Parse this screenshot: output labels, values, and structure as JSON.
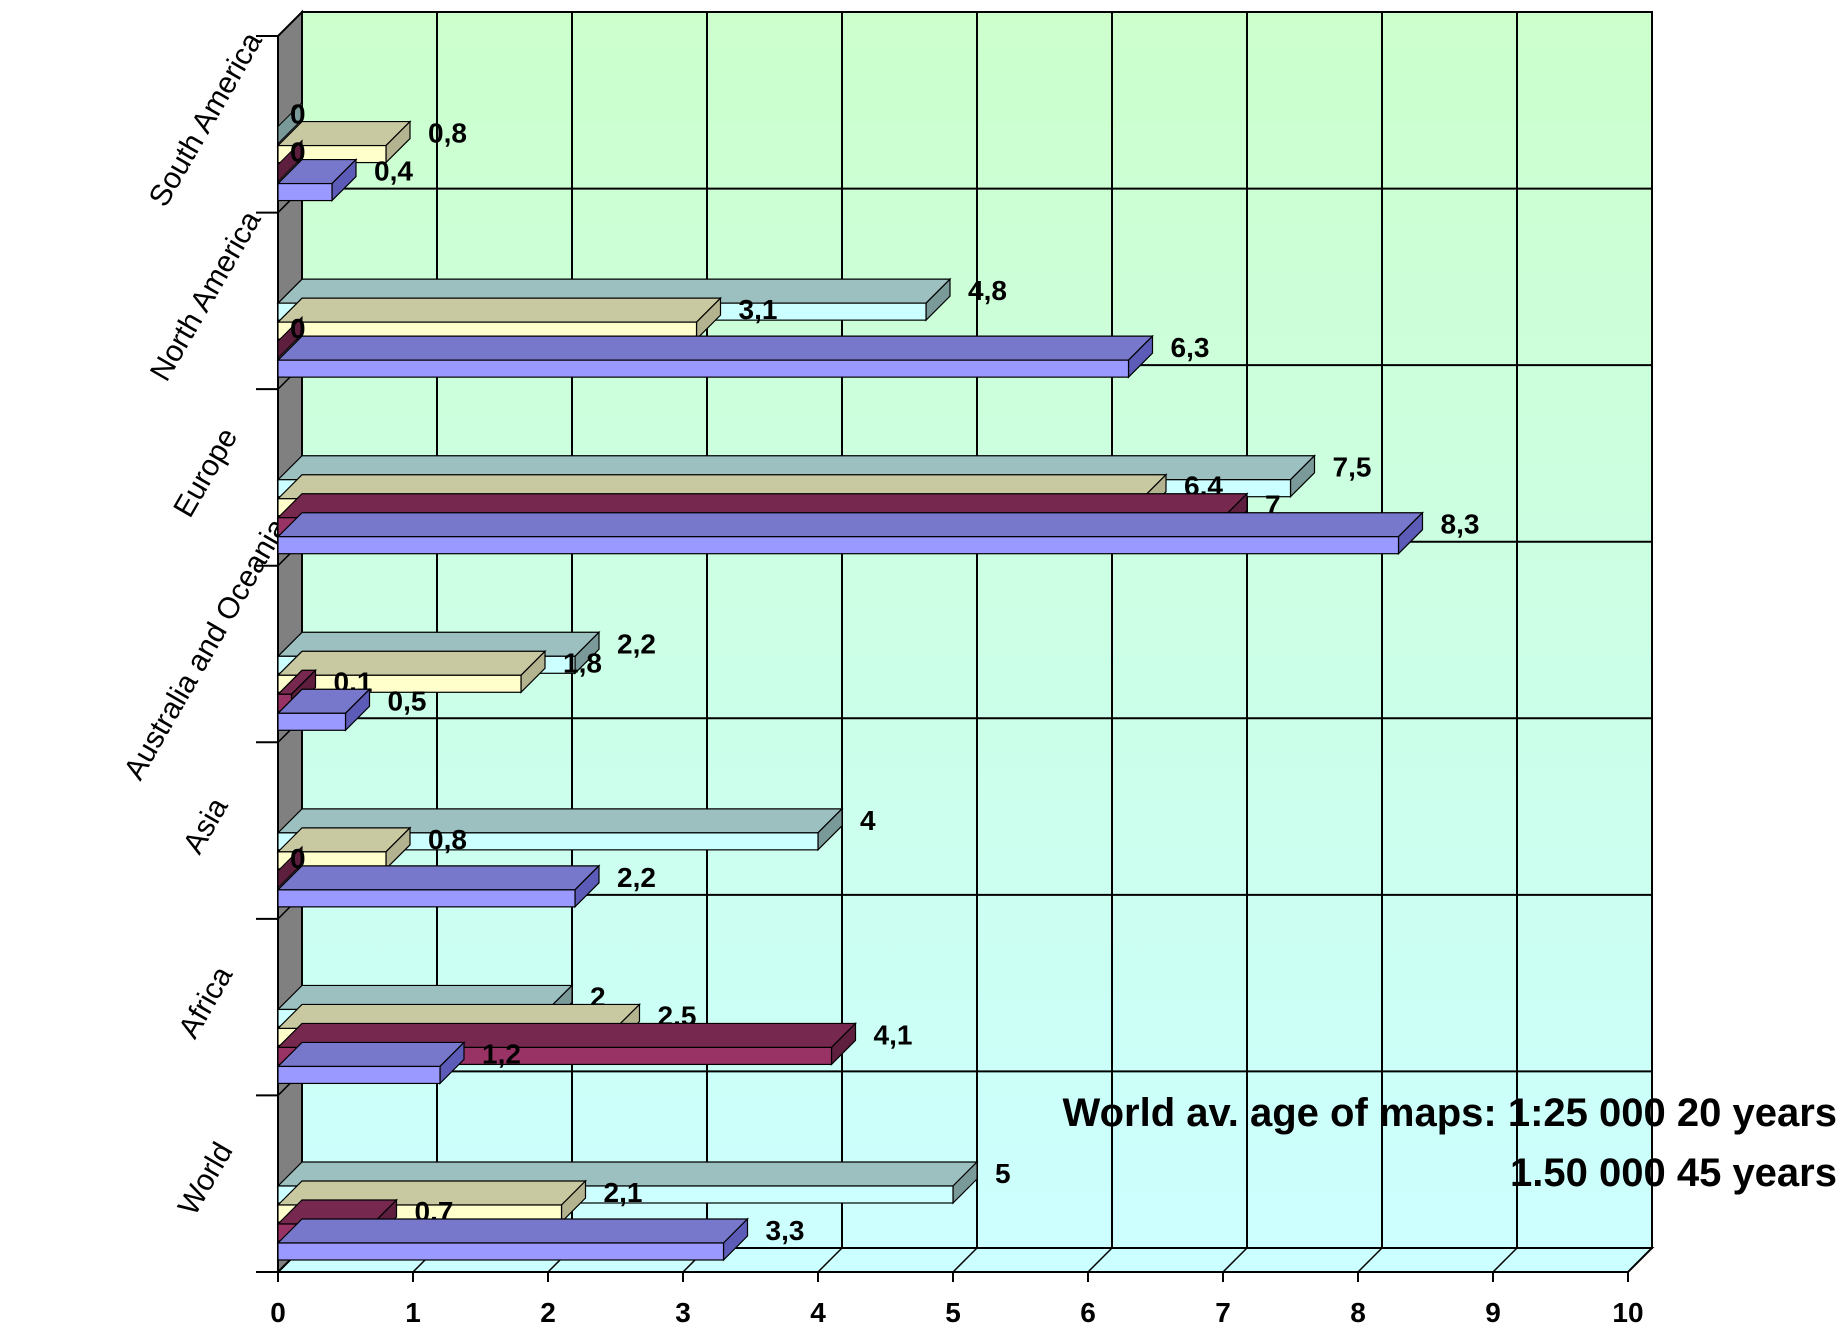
{
  "chart_data": {
    "type": "bar",
    "orientation": "horizontal",
    "three_d": true,
    "categories": [
      "World",
      "Africa",
      "Asia",
      "Australia and Oceania",
      "Europe",
      "North America",
      "South America"
    ],
    "series": [
      {
        "values": [
          3.3,
          1.2,
          2.2,
          0.5,
          8.3,
          6.3,
          0.4
        ],
        "labels": [
          "3,3",
          "1,2",
          "2,2",
          "0,5",
          "8,3",
          "6,3",
          "0,4"
        ],
        "color": "#9999ff",
        "side": "#5c5cb8",
        "top": "#7777cc"
      },
      {
        "values": [
          0.7,
          4.1,
          0,
          0.1,
          7,
          0,
          0
        ],
        "labels": [
          "0,7",
          "4,1",
          "0",
          "0,1",
          "7",
          "0",
          "0"
        ],
        "color": "#993366",
        "side": "#5e1f3f",
        "top": "#77284f"
      },
      {
        "values": [
          2.1,
          2.5,
          0.8,
          1.8,
          6.4,
          3.1,
          0.8
        ],
        "labels": [
          "2,1",
          "2,5",
          "0,8",
          "1,8",
          "6,4",
          "3,1",
          "0,8"
        ],
        "color": "#ffffcc",
        "side": "#b3b38f",
        "top": "#c9c9a1"
      },
      {
        "values": [
          5,
          2,
          4,
          2.2,
          7.5,
          4.8,
          0
        ],
        "labels": [
          "5",
          "2",
          "4",
          "2,2",
          "7,5",
          "4,8",
          "0"
        ],
        "color": "#ccffff",
        "side": "#7a9999",
        "top": "#9cc0c0"
      }
    ],
    "xlim": [
      0,
      10
    ],
    "x_ticks": [
      "0",
      "1",
      "2",
      "3",
      "4",
      "5",
      "6",
      "7",
      "8",
      "9",
      "10"
    ],
    "grid": true,
    "legend": "none",
    "wall_colors": {
      "top": "#ccffcc",
      "bottom": "#ccffff"
    },
    "annotation": [
      "World av. age of maps: 1:25 000 20 years",
      "1.50 000 45 years"
    ]
  }
}
